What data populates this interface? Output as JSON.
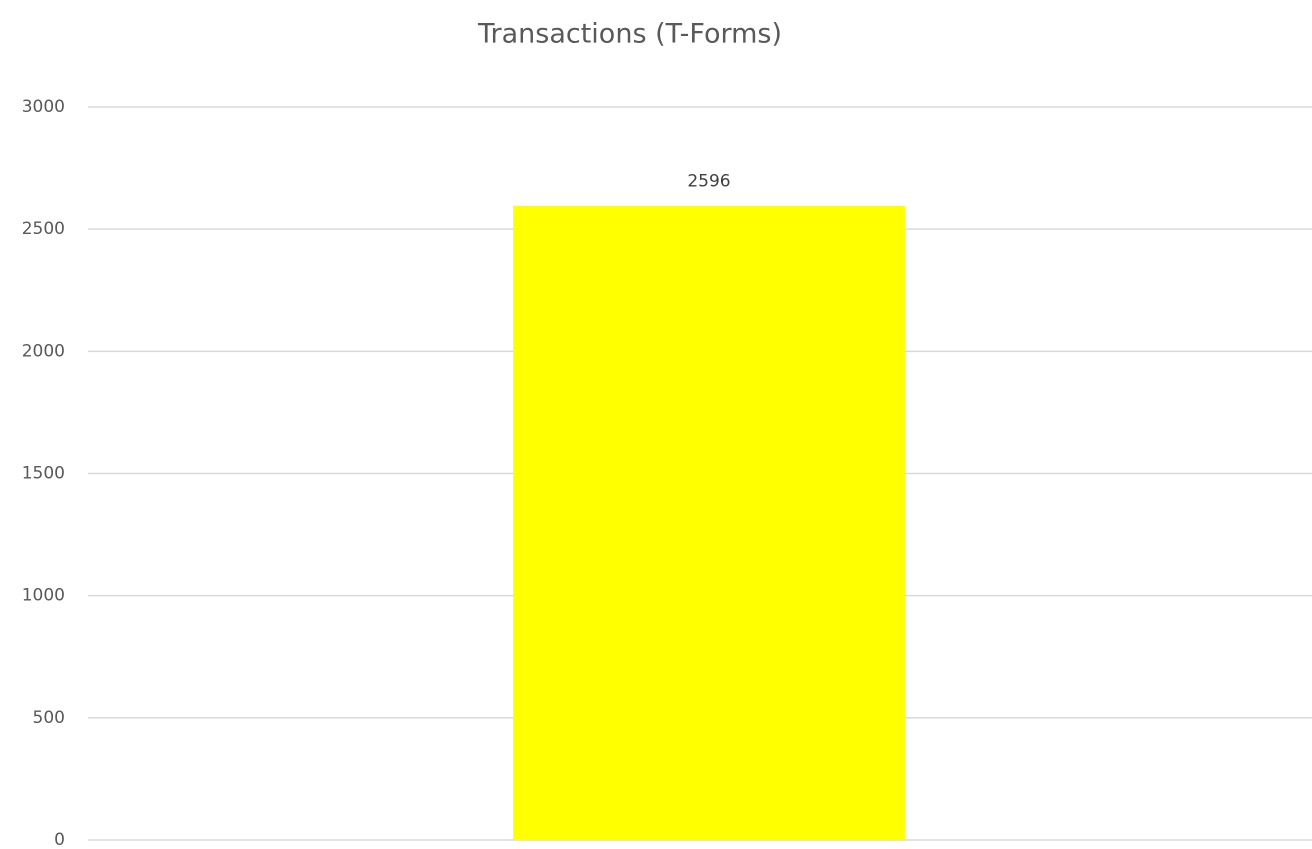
{
  "chart_data": {
    "type": "bar",
    "title": "Transactions (T-Forms)",
    "categories": [
      null
    ],
    "values": [
      2596
    ],
    "color": "#ffff00",
    "ylim": [
      0,
      3000
    ],
    "yticks": [
      0,
      500,
      1000,
      1500,
      2000,
      2500,
      3000
    ],
    "grid": true
  }
}
